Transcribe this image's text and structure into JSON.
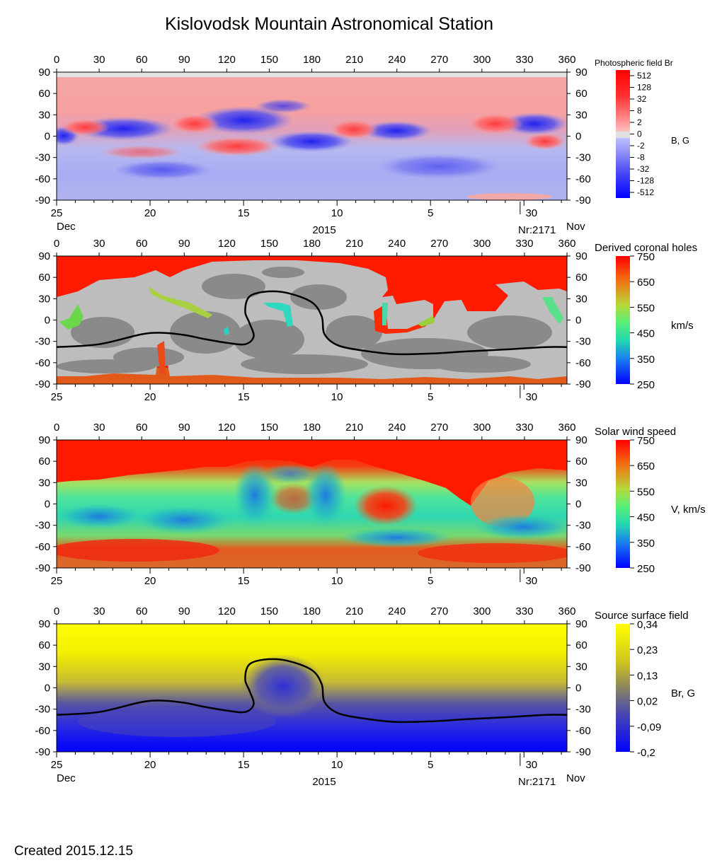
{
  "title": "Kislovodsk Mountain Astronomical Station",
  "footer": {
    "created": "Created  2015.12.15"
  },
  "axes": {
    "lon_ticks": [
      "0",
      "30",
      "60",
      "90",
      "120",
      "150",
      "180",
      "210",
      "240",
      "270",
      "300",
      "330",
      "360"
    ],
    "lat_ticks": [
      "90",
      "60",
      "30",
      "0",
      "-30",
      "-60",
      "-90"
    ],
    "day_ticks": [
      "25",
      "20",
      "15",
      "10",
      "5",
      "30"
    ],
    "left_month": "Dec",
    "right_month": "Nov",
    "year": "2015",
    "rotation": "Nr:2171"
  },
  "chart_data": [
    {
      "type": "heatmap",
      "name": "photospheric",
      "title": "Photospheric field Br",
      "unit_label": "B, G",
      "xlim": [
        0,
        360
      ],
      "ylim": [
        -90,
        90
      ],
      "colorbar_ticks": [
        "512",
        "128",
        "32",
        "8",
        "2",
        "0",
        "-2",
        "-8",
        "-32",
        "-128",
        "-512"
      ],
      "colors": {
        "positive": "#ff0000",
        "zero": "#d8d8d8",
        "negative": "#0000ff"
      }
    },
    {
      "type": "heatmap",
      "name": "coronal",
      "title": "Derived coronal holes",
      "unit_label": "km/s",
      "xlim": [
        0,
        360
      ],
      "ylim": [
        -90,
        90
      ],
      "colorbar_ticks": [
        "750",
        "650",
        "550",
        "450",
        "350",
        "250"
      ],
      "neutral_line": [
        [
          0,
          -38
        ],
        [
          30,
          -34
        ],
        [
          60,
          -20
        ],
        [
          75,
          -18
        ],
        [
          90,
          -21
        ],
        [
          105,
          -27
        ],
        [
          120,
          -32
        ],
        [
          133,
          -34
        ],
        [
          139,
          -23
        ],
        [
          136,
          -4
        ],
        [
          133,
          12
        ],
        [
          136,
          33
        ],
        [
          148,
          40
        ],
        [
          163,
          38
        ],
        [
          180,
          25
        ],
        [
          187,
          5
        ],
        [
          189,
          -20
        ],
        [
          199,
          -36
        ],
        [
          220,
          -44
        ],
        [
          240,
          -48
        ],
        [
          265,
          -47
        ],
        [
          290,
          -44
        ],
        [
          320,
          -41
        ],
        [
          345,
          -38
        ],
        [
          360,
          -38
        ]
      ]
    },
    {
      "type": "heatmap",
      "name": "wind",
      "title": "Solar wind speed",
      "unit_label": "V, km/s",
      "xlim": [
        0,
        360
      ],
      "ylim": [
        -90,
        90
      ],
      "colorbar_ticks": [
        "750",
        "650",
        "550",
        "450",
        "350",
        "250"
      ]
    },
    {
      "type": "heatmap",
      "name": "source",
      "title": "Source surface field",
      "unit_label": "Br, G",
      "xlim": [
        0,
        360
      ],
      "ylim": [
        -90,
        90
      ],
      "colorbar_ticks": [
        "0,34",
        "0,23",
        "0,13",
        "0,02",
        "-0,09",
        "-0,2"
      ],
      "neutral_line": [
        [
          0,
          -38
        ],
        [
          30,
          -34
        ],
        [
          60,
          -20
        ],
        [
          75,
          -18
        ],
        [
          90,
          -21
        ],
        [
          105,
          -27
        ],
        [
          120,
          -32
        ],
        [
          133,
          -34
        ],
        [
          139,
          -23
        ],
        [
          136,
          -4
        ],
        [
          133,
          12
        ],
        [
          136,
          33
        ],
        [
          148,
          40
        ],
        [
          163,
          38
        ],
        [
          180,
          25
        ],
        [
          187,
          5
        ],
        [
          189,
          -20
        ],
        [
          199,
          -36
        ],
        [
          220,
          -44
        ],
        [
          240,
          -48
        ],
        [
          265,
          -47
        ],
        [
          290,
          -44
        ],
        [
          320,
          -41
        ],
        [
          345,
          -38
        ],
        [
          360,
          -38
        ]
      ]
    }
  ]
}
